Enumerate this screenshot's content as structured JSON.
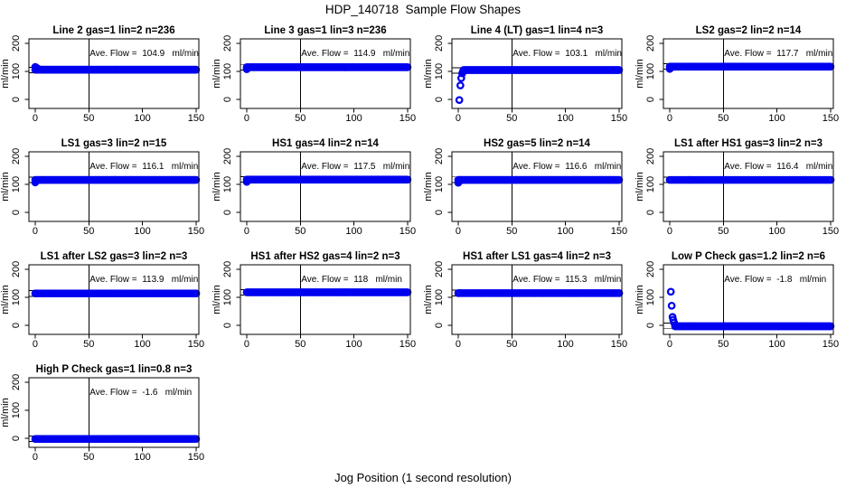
{
  "page": {
    "title": "HDP_140718  Sample Flow Shapes",
    "xlabel": "Jog Position (1 second resolution)"
  },
  "chart_data": {
    "type": "scatter",
    "title": "HDP_140718  Sample Flow Shapes",
    "xlabel": "Jog Position (1 second resolution)",
    "ylabel": "ml/min",
    "x_ticks": [
      0,
      50,
      100,
      150
    ],
    "y_ticks": [
      0,
      100,
      200
    ],
    "xlim": [
      -5.9,
      152.6
    ],
    "ylim": [
      -32,
      216
    ],
    "vline_x": 50,
    "hline_offset": 10,
    "grid": {
      "rows": 4,
      "cols": 4
    },
    "point_color": "#0000f0",
    "axis_color": "#000000",
    "panels": [
      {
        "title": "Line 2 gas=1 lin=2 n=236",
        "n": 236,
        "ave_flow": 104.9,
        "label": "Ave. Flow =  104.9   ml/min",
        "steady_flow": 106,
        "flat_start": 0,
        "flat_end": 150.5,
        "step": 1.0,
        "start_points": [
          [
            0,
            116
          ],
          [
            0.7,
            114
          ],
          [
            1.5,
            112
          ],
          [
            2.3,
            110
          ]
        ]
      },
      {
        "title": "Line 3 gas=1 lin=3 n=236",
        "n": 236,
        "ave_flow": 114.9,
        "label": "Ave. Flow =  114.9   ml/min",
        "steady_flow": 115,
        "flat_start": 0,
        "flat_end": 150.5,
        "step": 1.0,
        "start_points": [
          [
            0,
            108
          ],
          [
            0.8,
            111
          ]
        ]
      },
      {
        "title": "Line 4 (LT) gas=1 lin=4 n=3",
        "n": 3,
        "ave_flow": 103.1,
        "label": "Ave. Flow =  103.1   ml/min",
        "steady_flow": 105,
        "flat_start": 5,
        "flat_end": 150.5,
        "step": 1.0,
        "start_points": [
          [
            1,
            -2
          ],
          [
            2,
            50
          ],
          [
            2.8,
            76
          ],
          [
            3.7,
            93
          ],
          [
            4.4,
            100
          ]
        ]
      },
      {
        "title": "LS2 gas=2 lin=2 n=14",
        "n": 14,
        "ave_flow": 117.7,
        "label": "Ave. Flow =  117.7   ml/min",
        "steady_flow": 117,
        "flat_start": 0,
        "flat_end": 150.5,
        "step": 1.0,
        "start_points": [
          [
            0,
            109
          ],
          [
            0.8,
            112
          ]
        ]
      },
      {
        "title": "LS1 gas=3 lin=2 n=15",
        "n": 15,
        "ave_flow": 116.1,
        "label": "Ave. Flow =  116.1   ml/min",
        "steady_flow": 116,
        "flat_start": 0,
        "flat_end": 150.5,
        "step": 1.0,
        "start_points": [
          [
            0,
            107
          ],
          [
            0.8,
            111
          ]
        ]
      },
      {
        "title": "HS1 gas=4 lin=2 n=14",
        "n": 14,
        "ave_flow": 117.5,
        "label": "Ave. Flow =  117.5   ml/min",
        "steady_flow": 117,
        "flat_start": 0,
        "flat_end": 150.5,
        "step": 1.0,
        "start_points": [
          [
            0,
            109
          ],
          [
            0.8,
            113
          ]
        ]
      },
      {
        "title": "HS2 gas=5 lin=2 n=14",
        "n": 14,
        "ave_flow": 116.6,
        "label": "Ave. Flow =  116.6   ml/min",
        "steady_flow": 116,
        "flat_start": 0,
        "flat_end": 150.5,
        "step": 1.0,
        "start_points": [
          [
            0,
            106
          ],
          [
            0.8,
            110
          ]
        ]
      },
      {
        "title": "LS1 after HS1 gas=3 lin=2 n=3",
        "n": 3,
        "ave_flow": 116.4,
        "label": "Ave. Flow =  116.4   ml/min",
        "steady_flow": 116,
        "flat_start": 0,
        "flat_end": 150.5,
        "step": 1.9,
        "start_points": []
      },
      {
        "title": "LS1 after LS2 gas=3 lin=2 n=3",
        "n": 3,
        "ave_flow": 113.9,
        "label": "Ave. Flow =  113.9   ml/min",
        "steady_flow": 114,
        "flat_start": 0,
        "flat_end": 150.5,
        "step": 1.9,
        "start_points": []
      },
      {
        "title": "HS1 after HS2 gas=4 lin=2 n=3",
        "n": 3,
        "ave_flow": 118,
        "label": "Ave. Flow =  118   ml/min",
        "steady_flow": 118,
        "flat_start": 0,
        "flat_end": 150.5,
        "step": 1.0,
        "start_points": []
      },
      {
        "title": "HS1 after LS1 gas=4 lin=2 n=3",
        "n": 3,
        "ave_flow": 115.3,
        "label": "Ave. Flow =  115.3   ml/min",
        "steady_flow": 115,
        "flat_start": 0,
        "flat_end": 150.5,
        "step": 1.9,
        "start_points": []
      },
      {
        "title": "Low P Check gas=1.2 lin=2 n=6",
        "n": 6,
        "ave_flow": -1.8,
        "label": "Ave. Flow =  -1.8   ml/min",
        "steady_flow": -3,
        "flat_start": 5,
        "flat_end": 150.5,
        "step": 1.0,
        "start_points": [
          [
            1,
            120
          ],
          [
            1.8,
            70
          ],
          [
            2.6,
            30
          ],
          [
            3.2,
            20
          ],
          [
            4,
            10
          ]
        ]
      },
      {
        "title": "High P Check gas=1 lin=0.8 n=3",
        "n": 3,
        "ave_flow": -1.6,
        "label": "Ave. Flow =  -1.6   ml/min",
        "steady_flow": -2,
        "flat_start": 0,
        "flat_end": 150.5,
        "step": 1.0,
        "start_points": []
      }
    ]
  }
}
